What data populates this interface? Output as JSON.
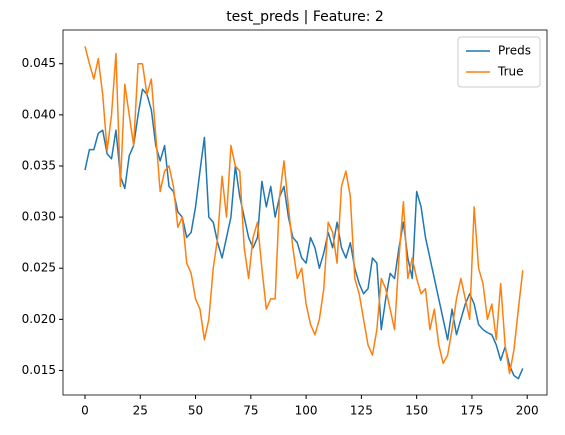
{
  "chart_data": {
    "type": "line",
    "title": "test_preds | Feature: 2",
    "x": [
      0,
      2,
      4,
      6,
      8,
      10,
      12,
      14,
      16,
      18,
      20,
      22,
      24,
      26,
      28,
      30,
      32,
      34,
      36,
      38,
      40,
      42,
      44,
      46,
      48,
      50,
      52,
      54,
      56,
      58,
      60,
      62,
      64,
      66,
      68,
      70,
      72,
      74,
      76,
      78,
      80,
      82,
      84,
      86,
      88,
      90,
      92,
      94,
      96,
      98,
      100,
      102,
      104,
      106,
      108,
      110,
      112,
      114,
      116,
      118,
      120,
      122,
      124,
      126,
      128,
      130,
      132,
      134,
      136,
      138,
      140,
      142,
      144,
      146,
      148,
      150,
      152,
      154,
      156,
      158,
      160,
      162,
      164,
      166,
      168,
      170,
      172,
      174,
      176,
      178,
      180,
      182,
      184,
      186,
      188,
      190,
      192,
      194,
      196,
      198
    ],
    "series": [
      {
        "name": "Preds",
        "color": "#1f77b4",
        "values": [
          0.0346,
          0.0366,
          0.0366,
          0.0382,
          0.0385,
          0.0362,
          0.0357,
          0.0385,
          0.034,
          0.0328,
          0.036,
          0.037,
          0.04,
          0.0425,
          0.042,
          0.0405,
          0.037,
          0.0355,
          0.037,
          0.033,
          0.0325,
          0.0305,
          0.03,
          0.028,
          0.0285,
          0.031,
          0.0345,
          0.0378,
          0.03,
          0.0295,
          0.0275,
          0.026,
          0.028,
          0.03,
          0.035,
          0.032,
          0.03,
          0.028,
          0.027,
          0.028,
          0.0335,
          0.031,
          0.033,
          0.03,
          0.032,
          0.033,
          0.03,
          0.028,
          0.0275,
          0.026,
          0.0255,
          0.028,
          0.027,
          0.025,
          0.0265,
          0.0285,
          0.027,
          0.0295,
          0.027,
          0.026,
          0.0275,
          0.025,
          0.0235,
          0.0225,
          0.023,
          0.026,
          0.0255,
          0.019,
          0.022,
          0.0245,
          0.024,
          0.027,
          0.0295,
          0.026,
          0.024,
          0.0325,
          0.031,
          0.028,
          0.026,
          0.024,
          0.022,
          0.02,
          0.018,
          0.021,
          0.0185,
          0.02,
          0.0215,
          0.0225,
          0.0215,
          0.0195,
          0.019,
          0.0187,
          0.0185,
          0.0175,
          0.016,
          0.0173,
          0.0155,
          0.0145,
          0.0142,
          0.0152
        ]
      },
      {
        "name": "True",
        "color": "#ff7f0e",
        "values": [
          0.0467,
          0.045,
          0.0435,
          0.0455,
          0.042,
          0.0365,
          0.04,
          0.046,
          0.033,
          0.043,
          0.04,
          0.037,
          0.045,
          0.045,
          0.042,
          0.0435,
          0.038,
          0.0325,
          0.0345,
          0.035,
          0.033,
          0.029,
          0.03,
          0.0255,
          0.0245,
          0.022,
          0.021,
          0.018,
          0.02,
          0.025,
          0.028,
          0.034,
          0.03,
          0.037,
          0.035,
          0.0345,
          0.027,
          0.024,
          0.028,
          0.0295,
          0.025,
          0.021,
          0.022,
          0.022,
          0.032,
          0.0355,
          0.031,
          0.027,
          0.024,
          0.025,
          0.0215,
          0.0195,
          0.0185,
          0.02,
          0.023,
          0.0295,
          0.0285,
          0.0255,
          0.033,
          0.0345,
          0.032,
          0.024,
          0.0225,
          0.02,
          0.0175,
          0.0165,
          0.019,
          0.024,
          0.023,
          0.021,
          0.019,
          0.026,
          0.0315,
          0.024,
          0.026,
          0.024,
          0.0225,
          0.023,
          0.019,
          0.021,
          0.0175,
          0.0157,
          0.0165,
          0.019,
          0.022,
          0.024,
          0.022,
          0.02,
          0.031,
          0.025,
          0.0235,
          0.02,
          0.0215,
          0.018,
          0.0235,
          0.0175,
          0.0147,
          0.017,
          0.021,
          0.0248
        ]
      }
    ],
    "xlim": [
      -9.95,
      208.95
    ],
    "xticks": [
      0,
      25,
      50,
      75,
      100,
      125,
      150,
      175,
      200
    ],
    "ylim": [
      0.0126,
      0.0483
    ],
    "yticks": [
      0.015,
      {
        "value": 0.02,
        "label": "0.020"
      },
      0.025,
      {
        "value": 0.03,
        "label": "0.030"
      },
      0.035,
      {
        "value": 0.04,
        "label": "0.040"
      },
      0.045
    ],
    "legend": "upper right"
  }
}
